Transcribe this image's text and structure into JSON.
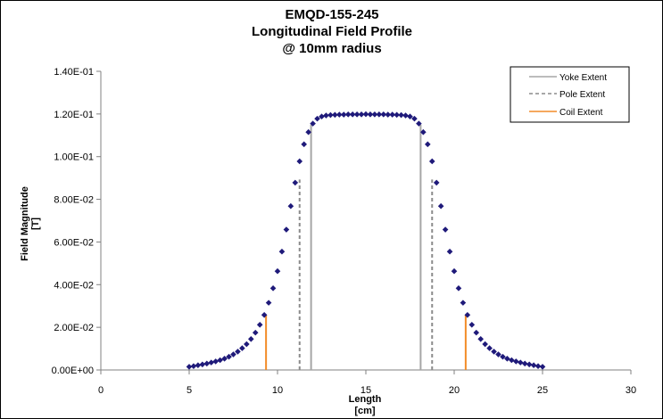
{
  "chart_data": {
    "type": "scatter",
    "title": [
      "EMQD-155-245",
      "Longitudinal Field Profile",
      "@ 10mm radius"
    ],
    "xlabel": [
      "Length",
      "[cm]"
    ],
    "ylabel": [
      "Field Magnitude",
      "[T]"
    ],
    "xlim": [
      0,
      30
    ],
    "ylim": [
      0,
      0.14
    ],
    "x_ticks": [
      0,
      5,
      10,
      15,
      20,
      25,
      30
    ],
    "x_tick_labels": [
      "0",
      "5",
      "10",
      "15",
      "20",
      "25",
      "30"
    ],
    "y_ticks": [
      0,
      0.02,
      0.04,
      0.06,
      0.08,
      0.1,
      0.12,
      0.14
    ],
    "y_tick_labels": [
      "0.00E+00",
      "2.00E-02",
      "4.00E-02",
      "6.00E-02",
      "8.00E-02",
      "1.00E-01",
      "1.20E-01",
      "1.40E-01"
    ],
    "grid": false,
    "legend_position": "top-right",
    "series": [
      {
        "marker": "diamond",
        "color": "#1f1a7a",
        "x": [
          5.0,
          5.25,
          5.5,
          5.75,
          6.0,
          6.25,
          6.5,
          6.75,
          7.0,
          7.25,
          7.5,
          7.75,
          8.0,
          8.25,
          8.5,
          8.75,
          9.0,
          9.25,
          9.5,
          9.75,
          10.0,
          10.25,
          10.5,
          10.75,
          11.0,
          11.25,
          11.5,
          11.75,
          12.0,
          12.25,
          12.5,
          12.75,
          13.0,
          13.25,
          13.5,
          13.75,
          14.0,
          14.25,
          14.5,
          14.75,
          15.0,
          15.25,
          15.5,
          15.75,
          16.0,
          16.25,
          16.5,
          16.75,
          17.0,
          17.25,
          17.5,
          17.75,
          18.0,
          18.25,
          18.5,
          18.75,
          19.0,
          19.25,
          19.5,
          19.75,
          20.0,
          20.25,
          20.5,
          20.75,
          21.0,
          21.25,
          21.5,
          21.75,
          22.0,
          22.25,
          22.5,
          22.75,
          23.0,
          23.25,
          23.5,
          23.75,
          24.0,
          24.25,
          24.5,
          24.75,
          25.0
        ],
        "y": [
          0.0015,
          0.0018,
          0.0022,
          0.0026,
          0.003,
          0.0035,
          0.004,
          0.0046,
          0.0053,
          0.0062,
          0.0073,
          0.0086,
          0.0102,
          0.0121,
          0.0145,
          0.0175,
          0.0212,
          0.0258,
          0.0315,
          0.0383,
          0.0463,
          0.0555,
          0.0658,
          0.0768,
          0.0878,
          0.0978,
          0.1058,
          0.1115,
          0.1155,
          0.1178,
          0.1188,
          0.1193,
          0.1195,
          0.1196,
          0.1197,
          0.1197,
          0.1198,
          0.1198,
          0.1198,
          0.1198,
          0.1199,
          0.1198,
          0.1198,
          0.1198,
          0.1198,
          0.1197,
          0.1197,
          0.1196,
          0.1195,
          0.1193,
          0.1188,
          0.1178,
          0.1155,
          0.1115,
          0.1058,
          0.0978,
          0.0878,
          0.0768,
          0.0658,
          0.0555,
          0.0463,
          0.0383,
          0.0315,
          0.0258,
          0.0212,
          0.0175,
          0.0145,
          0.0121,
          0.0102,
          0.0086,
          0.0073,
          0.0062,
          0.0053,
          0.0046,
          0.004,
          0.0035,
          0.003,
          0.0026,
          0.0022,
          0.0018,
          0.0015
        ]
      },
      {
        "name": "Yoke Extent",
        "color": "#a6a6a6",
        "dash": "solid",
        "x_positions": [
          11.9,
          18.1
        ],
        "y_top": 0.115
      },
      {
        "name": "Pole Extent",
        "color": "#8c8c8c",
        "dash": "dashed",
        "x_positions": [
          11.25,
          18.75
        ],
        "y_top": 0.0893
      },
      {
        "name": "Coil Extent",
        "color": "#f28c28",
        "dash": "solid",
        "x_positions": [
          9.35,
          20.65
        ],
        "y_top": 0.0258
      }
    ]
  }
}
